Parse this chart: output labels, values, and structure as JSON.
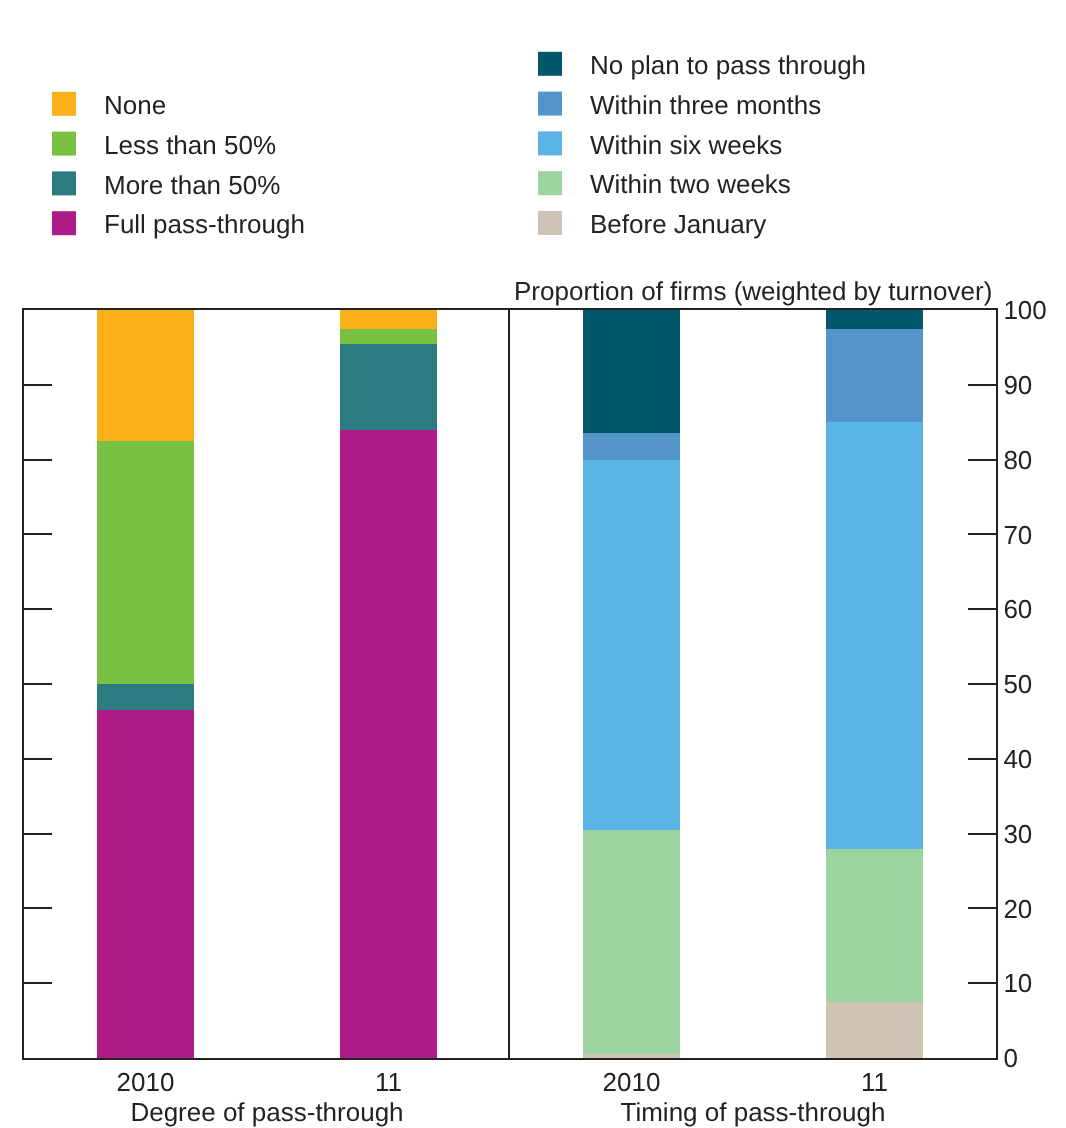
{
  "chart_data": [
    {
      "type": "bar",
      "stacked": true,
      "xlabel": "Degree of pass-through",
      "categories": [
        "2010",
        "11"
      ],
      "legend": "top",
      "tick_labels": "x",
      "ylim": [
        0,
        100
      ],
      "yticks": [
        {
          "value": 0,
          "label": null
        },
        {
          "value": 10,
          "label": null
        },
        {
          "value": 20,
          "label": null
        },
        {
          "value": 30,
          "label": null
        },
        {
          "value": 40,
          "label": null
        },
        {
          "value": 50,
          "label": null
        },
        {
          "value": 60,
          "label": null
        },
        {
          "value": 70,
          "label": null
        },
        {
          "value": 80,
          "label": null
        },
        {
          "value": 90,
          "label": null
        },
        {
          "value": 100,
          "label": null
        }
      ],
      "series": [
        {
          "name": "Full pass-through",
          "color": "#b01c87",
          "values": [
            46.5,
            84
          ]
        },
        {
          "name": "More than 50%",
          "color": "#2b7b80",
          "values": [
            3.5,
            11.5
          ]
        },
        {
          "name": "Less than 50%",
          "color": "#79c143",
          "values": [
            32.5,
            2
          ]
        },
        {
          "name": "None",
          "color": "#fbb01a",
          "values": [
            17.5,
            2.5
          ]
        }
      ]
    },
    {
      "type": "bar",
      "stacked": true,
      "xlabel": "Timing of pass-through",
      "ylabel": "Proportion of firms (weighted by turnover)",
      "categories": [
        "2010",
        "11"
      ],
      "legend": "top",
      "ylim": [
        0,
        100
      ],
      "yticks": [
        0,
        10,
        20,
        30,
        40,
        50,
        60,
        70,
        80,
        90,
        100
      ],
      "series": [
        {
          "name": "Before January",
          "color": "#cfc3b6",
          "values": [
            0.5,
            7.5
          ]
        },
        {
          "name": "Within two weeks",
          "color": "#9dd3a1",
          "values": [
            30,
            20.5
          ]
        },
        {
          "name": "Within six weeks",
          "color": "#5ab4e6",
          "values": [
            49.5,
            57
          ]
        },
        {
          "name": "Within three months",
          "color": "#5594c8",
          "values": [
            3.5,
            12.5
          ]
        },
        {
          "name": "No plan to pass through",
          "color": "#02576a",
          "values": [
            16.7,
            2.5
          ]
        }
      ]
    }
  ]
}
